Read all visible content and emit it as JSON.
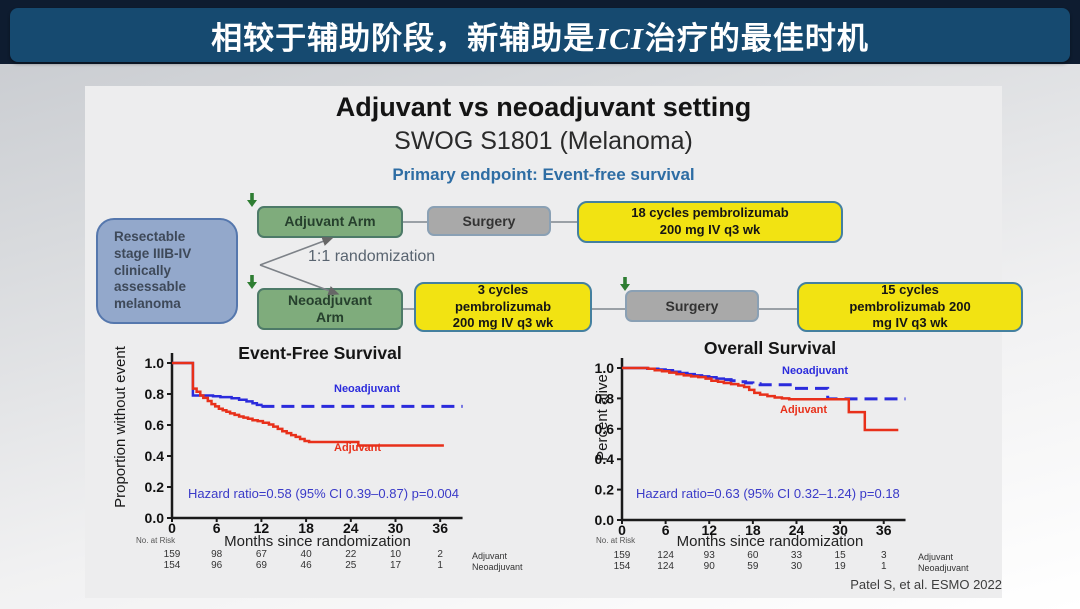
{
  "header": {
    "title_prefix": "相较于辅助阶段，新辅助是",
    "title_italic": "ICI",
    "title_suffix": "治疗的最佳时机"
  },
  "study": {
    "title": "Adjuvant vs neoadjuvant setting",
    "subtitle": "SWOG S1801 (Melanoma)",
    "endpoint": "Primary endpoint: Event-free survival",
    "citation": "Patel S, et al. ESMO 2022"
  },
  "flow": {
    "population": "Resectable\nstage IIIB-IV\nclinically\nassessable\nmelanoma",
    "randomization": "1:1 randomization",
    "arm_top": "Adjuvant Arm",
    "arm_bottom": "Neoadjuvant\nArm",
    "surgery_top": "Surgery",
    "surgery_bottom": "Surgery",
    "treatment_adjuvant": "18 cycles pembrolizumab\n200 mg IV q3 wk",
    "treatment_neoadjuvant_pre": "3 cycles\npembrolizumab\n200 mg IV q3 wk",
    "treatment_neoadjuvant_post": "15 cycles\npembrolizumab 200\nmg IV q3 wk"
  },
  "colors": {
    "header_bar": "#164a70",
    "endpoint_text": "#2e6da4",
    "hazard_text": "#3a3ac8",
    "neoadjuvant_curve": "#2b2bdc",
    "adjuvant_curve": "#e8301a"
  },
  "chart_data": [
    {
      "type": "line",
      "subtype": "kaplan-meier-step",
      "title": "Event-Free Survival",
      "ylabel": "Proportion without event",
      "xlabel": "Months since randomization",
      "annotation": "Hazard ratio=0.58 (95% CI 0.39–0.87) p=0.004",
      "xlim": [
        0,
        39
      ],
      "ylim": [
        0,
        1
      ],
      "xticks": [
        0,
        6,
        12,
        18,
        24,
        30,
        36
      ],
      "yticks": [
        0,
        0.2,
        0.4,
        0.6,
        0.8,
        1
      ],
      "grid": false,
      "series": [
        {
          "name": "Neoadjuvant",
          "color": "#2b2bdc",
          "dash_from": 11.5,
          "points": [
            [
              0,
              1
            ],
            [
              2.8,
              1
            ],
            [
              2.8,
              0.79
            ],
            [
              5.5,
              0.785
            ],
            [
              6.5,
              0.78
            ],
            [
              8,
              0.772
            ],
            [
              9,
              0.763
            ],
            [
              10,
              0.752
            ],
            [
              10.8,
              0.74
            ],
            [
              11.4,
              0.73
            ],
            [
              12,
              0.72
            ],
            [
              39,
              0.72
            ]
          ]
        },
        {
          "name": "Adjuvant",
          "color": "#e8301a",
          "dash_from": null,
          "points": [
            [
              0,
              1
            ],
            [
              2.8,
              1
            ],
            [
              2.8,
              0.835
            ],
            [
              3.3,
              0.815
            ],
            [
              3.8,
              0.79
            ],
            [
              4.2,
              0.775
            ],
            [
              4.8,
              0.755
            ],
            [
              5.3,
              0.735
            ],
            [
              5.8,
              0.72
            ],
            [
              6.3,
              0.705
            ],
            [
              6.8,
              0.695
            ],
            [
              7.3,
              0.685
            ],
            [
              7.8,
              0.675
            ],
            [
              8.4,
              0.665
            ],
            [
              9,
              0.655
            ],
            [
              9.6,
              0.648
            ],
            [
              10.2,
              0.64
            ],
            [
              10.8,
              0.63
            ],
            [
              11.5,
              0.625
            ],
            [
              12.2,
              0.615
            ],
            [
              13,
              0.603
            ],
            [
              13.6,
              0.59
            ],
            [
              14.2,
              0.575
            ],
            [
              14.8,
              0.56
            ],
            [
              15.4,
              0.548
            ],
            [
              16,
              0.535
            ],
            [
              16.6,
              0.523
            ],
            [
              17.2,
              0.51
            ],
            [
              17.8,
              0.497
            ],
            [
              18.4,
              0.49
            ],
            [
              24.6,
              0.49
            ],
            [
              25,
              0.468
            ],
            [
              36.5,
              0.468
            ]
          ]
        }
      ],
      "risk_table": {
        "label": "No. at Risk",
        "rows": [
          {
            "name": "Adjuvant",
            "counts": [
              159,
              98,
              67,
              40,
              22,
              10,
              2
            ]
          },
          {
            "name": "Neoadjuvant",
            "counts": [
              154,
              96,
              69,
              46,
              25,
              17,
              1
            ]
          }
        ]
      }
    },
    {
      "type": "line",
      "subtype": "kaplan-meier-step",
      "title": "Overall Survival",
      "ylabel": "Percent alive",
      "xlabel": "Months since randomization",
      "annotation": "Hazard ratio=0.63 (95% CI 0.32–1.24) p=0.18",
      "xlim": [
        0,
        39
      ],
      "ylim": [
        0,
        1
      ],
      "xticks": [
        0,
        6,
        12,
        18,
        24,
        30,
        36
      ],
      "yticks": [
        0,
        0.2,
        0.4,
        0.6,
        0.8,
        1
      ],
      "grid": false,
      "series": [
        {
          "name": "Neoadjuvant",
          "color": "#2b2bdc",
          "dash_from": 13.5,
          "points": [
            [
              0,
              1
            ],
            [
              3,
              1
            ],
            [
              3.5,
              0.995
            ],
            [
              5,
              0.99
            ],
            [
              6,
              0.985
            ],
            [
              7,
              0.975
            ],
            [
              8,
              0.967
            ],
            [
              9,
              0.96
            ],
            [
              10,
              0.951
            ],
            [
              11,
              0.945
            ],
            [
              12,
              0.939
            ],
            [
              13,
              0.93
            ],
            [
              14,
              0.924
            ],
            [
              15,
              0.916
            ],
            [
              16,
              0.909
            ],
            [
              17,
              0.902
            ],
            [
              18,
              0.896
            ],
            [
              19,
              0.89
            ],
            [
              23.5,
              0.89
            ],
            [
              24,
              0.866
            ],
            [
              28,
              0.866
            ],
            [
              28.3,
              0.797
            ],
            [
              39,
              0.797
            ]
          ]
        },
        {
          "name": "Adjuvant",
          "color": "#e8301a",
          "dash_from": null,
          "points": [
            [
              0,
              1
            ],
            [
              3,
              1
            ],
            [
              3.6,
              0.995
            ],
            [
              4.5,
              0.985
            ],
            [
              5.5,
              0.978
            ],
            [
              6.5,
              0.97
            ],
            [
              7.5,
              0.96
            ],
            [
              8.5,
              0.951
            ],
            [
              9.5,
              0.945
            ],
            [
              10.5,
              0.94
            ],
            [
              11.5,
              0.93
            ],
            [
              12.3,
              0.916
            ],
            [
              13.2,
              0.909
            ],
            [
              14,
              0.901
            ],
            [
              15,
              0.894
            ],
            [
              16,
              0.885
            ],
            [
              16.8,
              0.875
            ],
            [
              17.5,
              0.856
            ],
            [
              18.2,
              0.836
            ],
            [
              19,
              0.825
            ],
            [
              20,
              0.815
            ],
            [
              21,
              0.806
            ],
            [
              22,
              0.8
            ],
            [
              23,
              0.795
            ],
            [
              30.8,
              0.795
            ],
            [
              31.2,
              0.71
            ],
            [
              33.2,
              0.71
            ],
            [
              33.4,
              0.592
            ],
            [
              38,
              0.592
            ]
          ]
        }
      ],
      "risk_table": {
        "label": "No. at Risk",
        "rows": [
          {
            "name": "Adjuvant",
            "counts": [
              159,
              124,
              93,
              60,
              33,
              15,
              3
            ]
          },
          {
            "name": "Neoadjuvant",
            "counts": [
              154,
              124,
              90,
              59,
              30,
              19,
              1
            ]
          }
        ]
      }
    }
  ]
}
